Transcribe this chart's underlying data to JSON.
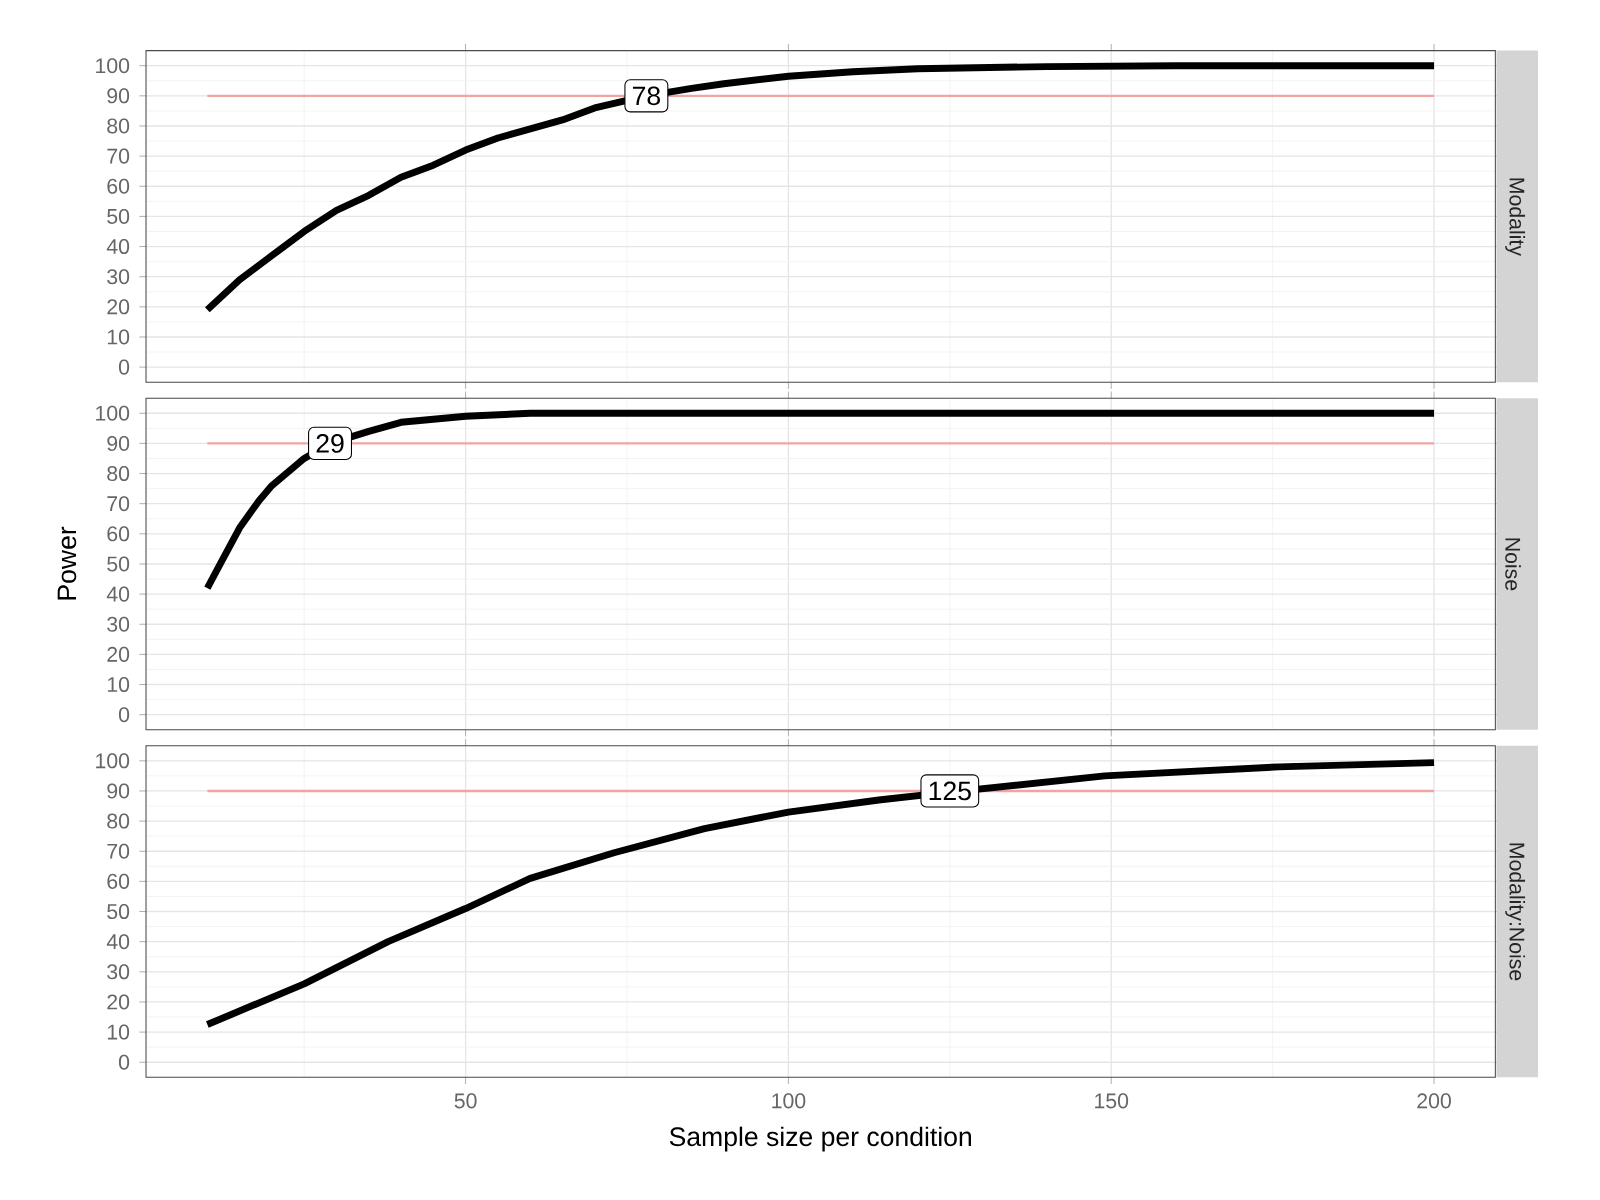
{
  "chart_data": [
    {
      "type": "line",
      "title": "Modality",
      "x": [
        10,
        15,
        20,
        25,
        30,
        35,
        40,
        45,
        50,
        55,
        60,
        65,
        70,
        78,
        85,
        90,
        100,
        110,
        120,
        140,
        160,
        200
      ],
      "values": [
        19,
        29,
        37,
        45,
        52,
        57,
        63,
        67,
        72,
        76,
        79,
        82,
        86,
        90,
        92.5,
        94,
        96.5,
        98,
        99,
        99.7,
        100,
        100
      ],
      "color": "#000000",
      "xlim": [
        0.5,
        209.5
      ],
      "ylim": [
        -5,
        105
      ],
      "xticks": [
        50,
        100,
        150,
        200
      ],
      "yticks": [
        0,
        10,
        20,
        30,
        40,
        50,
        60,
        70,
        80,
        90,
        100
      ],
      "grid": true,
      "tick_labels": "y",
      "ref_lines": [
        {
          "axis": "y",
          "value": 90,
          "color": "#f4a3a3"
        }
      ],
      "annotations": [
        {
          "text": "78",
          "x": 78,
          "y": 90
        }
      ]
    },
    {
      "type": "line",
      "title": "Noise",
      "ylabel": "Power",
      "x": [
        10,
        12,
        15,
        18,
        20,
        25,
        29,
        35,
        40,
        50,
        60,
        200
      ],
      "values": [
        42,
        50,
        62,
        71,
        76,
        85,
        90,
        94,
        97,
        99,
        100,
        100
      ],
      "color": "#000000",
      "xlim": [
        0.5,
        209.5
      ],
      "ylim": [
        -5,
        105
      ],
      "xticks": [
        50,
        100,
        150,
        200
      ],
      "yticks": [
        0,
        10,
        20,
        30,
        40,
        50,
        60,
        70,
        80,
        90,
        100
      ],
      "grid": true,
      "tick_labels": "y",
      "ref_lines": [
        {
          "axis": "y",
          "value": 90,
          "color": "#f4a3a3"
        }
      ],
      "annotations": [
        {
          "text": "29",
          "x": 29,
          "y": 90
        }
      ]
    },
    {
      "type": "line",
      "title": "Modality:Noise",
      "xlabel": "Sample size per condition",
      "x": [
        10,
        25,
        38,
        50,
        60,
        73,
        87,
        100,
        114,
        125,
        149,
        176,
        200
      ],
      "values": [
        12.5,
        26,
        40,
        51,
        61,
        69.5,
        77.5,
        83,
        87,
        89.6,
        95,
        98,
        99.4
      ],
      "color": "#000000",
      "xlim": [
        0.5,
        209.5
      ],
      "ylim": [
        -5,
        105
      ],
      "xticks": [
        50,
        100,
        150,
        200
      ],
      "yticks": [
        0,
        10,
        20,
        30,
        40,
        50,
        60,
        70,
        80,
        90,
        100
      ],
      "grid": true,
      "ref_lines": [
        {
          "axis": "y",
          "value": 90,
          "color": "#f4a3a3"
        }
      ],
      "annotations": [
        {
          "text": "125",
          "x": 125,
          "y": 90
        }
      ]
    }
  ]
}
